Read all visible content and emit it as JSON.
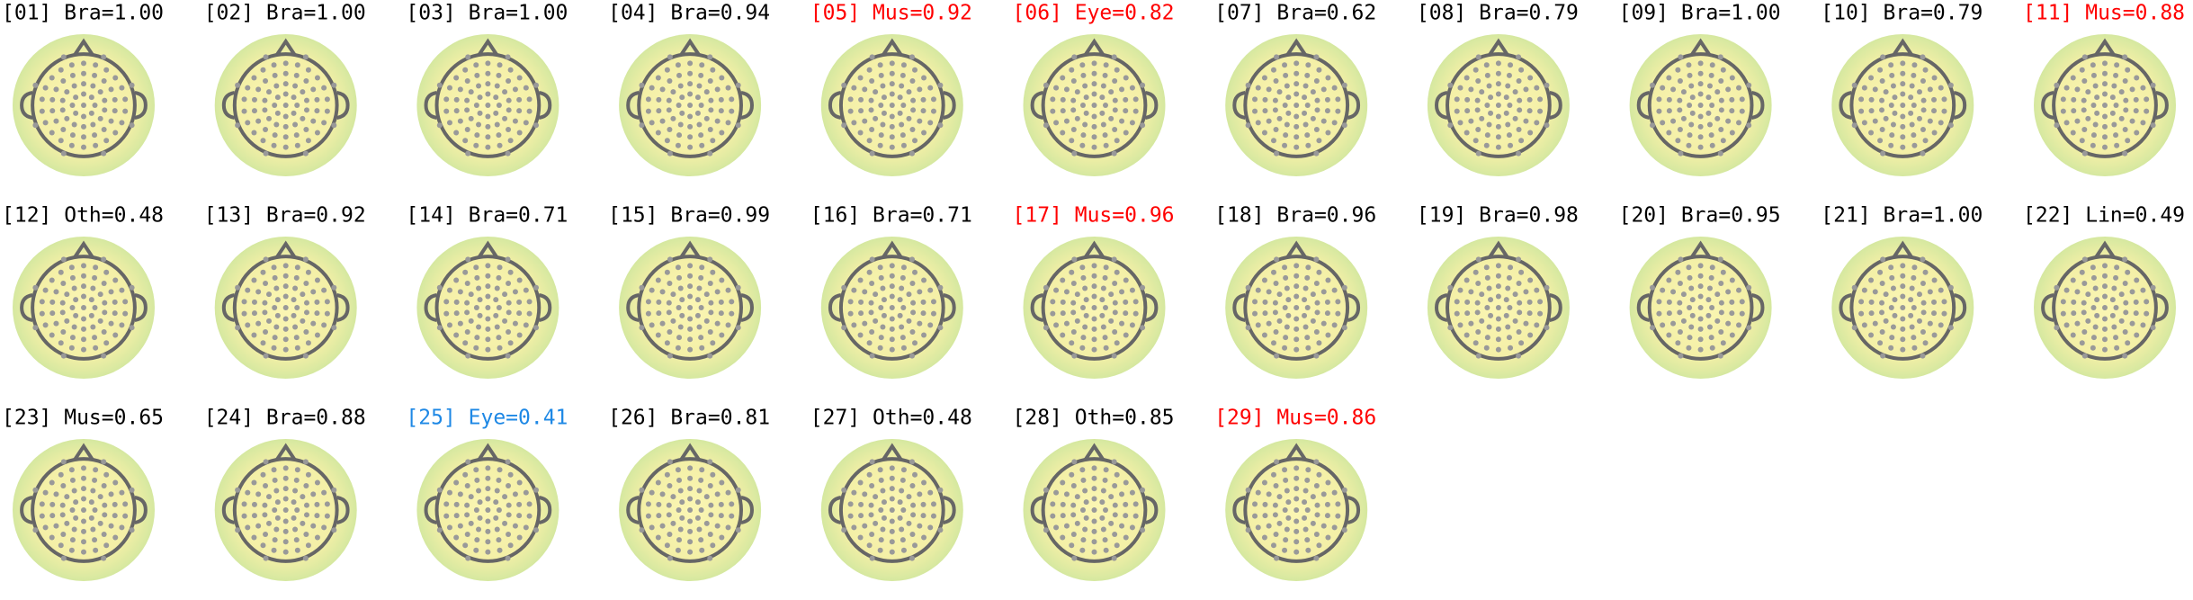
{
  "panels": [
    {
      "label": "[01] Bra=1.00",
      "color": "#000000"
    },
    {
      "label": "[02] Bra=1.00",
      "color": "#000000"
    },
    {
      "label": "[03] Bra=1.00",
      "color": "#000000"
    },
    {
      "label": "[04] Bra=0.94",
      "color": "#000000"
    },
    {
      "label": "[05] Mus=0.92",
      "color": "#ff0000"
    },
    {
      "label": "[06] Eye=0.82",
      "color": "#ff0000"
    },
    {
      "label": "[07] Bra=0.62",
      "color": "#000000"
    },
    {
      "label": "[08] Bra=0.79",
      "color": "#000000"
    },
    {
      "label": "[09] Bra=1.00",
      "color": "#000000"
    },
    {
      "label": "[10] Bra=0.79",
      "color": "#000000"
    },
    {
      "label": "[11] Mus=0.88",
      "color": "#ff0000"
    },
    {
      "label": "[12] Oth=0.48",
      "color": "#000000"
    },
    {
      "label": "[13] Bra=0.92",
      "color": "#000000"
    },
    {
      "label": "[14] Bra=0.71",
      "color": "#000000"
    },
    {
      "label": "[15] Bra=0.99",
      "color": "#000000"
    },
    {
      "label": "[16] Bra=0.71",
      "color": "#000000"
    },
    {
      "label": "[17] Mus=0.96",
      "color": "#ff0000"
    },
    {
      "label": "[18] Bra=0.96",
      "color": "#000000"
    },
    {
      "label": "[19] Bra=0.98",
      "color": "#000000"
    },
    {
      "label": "[20] Bra=0.95",
      "color": "#000000"
    },
    {
      "label": "[21] Bra=1.00",
      "color": "#000000"
    },
    {
      "label": "[22] Lin=0.49",
      "color": "#000000"
    },
    {
      "label": "[23] Mus=0.65",
      "color": "#000000"
    },
    {
      "label": "[24] Bra=0.88",
      "color": "#000000"
    },
    {
      "label": "[25] Eye=0.41",
      "color": "#1e88e5"
    },
    {
      "label": "[26] Bra=0.81",
      "color": "#000000"
    },
    {
      "label": "[27] Oth=0.48",
      "color": "#000000"
    },
    {
      "label": "[28] Oth=0.85",
      "color": "#000000"
    },
    {
      "label": "[29] Mus=0.86",
      "color": "#ff0000"
    }
  ]
}
